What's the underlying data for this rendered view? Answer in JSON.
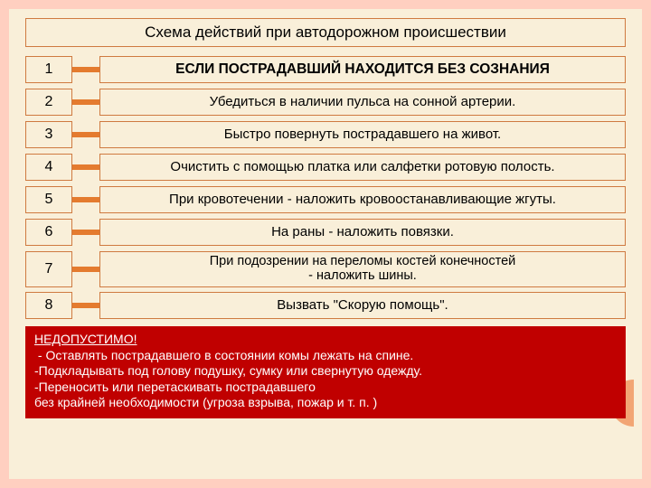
{
  "colors": {
    "outer_frame": "#ffcfc0",
    "page_bg": "#f9efd9",
    "box_border": "#cf7a40",
    "connector": "#e47b2f",
    "footer_bg": "#c00000",
    "footer_text": "#ffffff",
    "half_circle": "#f2a574"
  },
  "title": "Схема действий при автодорожном происшествии",
  "steps": [
    {
      "num": "1",
      "text": "ЕСЛИ ПОСТРАДАВШИЙ НАХОДИТСЯ БЕЗ СОЗНАНИЯ",
      "tall": false,
      "bold": true
    },
    {
      "num": "2",
      "text": "Убедиться в наличии пульса на сонной артерии.",
      "tall": false,
      "bold": false
    },
    {
      "num": "3",
      "text": "Быстро повернуть пострадавшего на живот.",
      "tall": false,
      "bold": false
    },
    {
      "num": "4",
      "text": "Очистить с помощью платка или салфетки ротовую полость.",
      "tall": false,
      "bold": false
    },
    {
      "num": "5",
      "text": "При кровотечении - наложить кровоостанавливающие жгуты.",
      "tall": false,
      "bold": false
    },
    {
      "num": "6",
      "text": "На раны - наложить повязки.",
      "tall": false,
      "bold": false
    },
    {
      "num": "7",
      "text": "При подозрении на переломы костей конечностей\n- наложить шины.",
      "tall": true,
      "bold": false
    },
    {
      "num": "8",
      "text": "Вызвать \"Скорую помощь\".",
      "tall": false,
      "bold": false
    }
  ],
  "footer": {
    "header": "НЕДОПУСТИМО!",
    "lines": [
      " - Оставлять пострадавшего в состоянии комы лежать на спине.",
      "-Подкладывать под голову подушку, сумку или свернутую одежду.",
      "-Переносить или перетаскивать пострадавшего",
      "без крайней необходимости (угроза взрыва, пожар и т. п. )"
    ]
  }
}
